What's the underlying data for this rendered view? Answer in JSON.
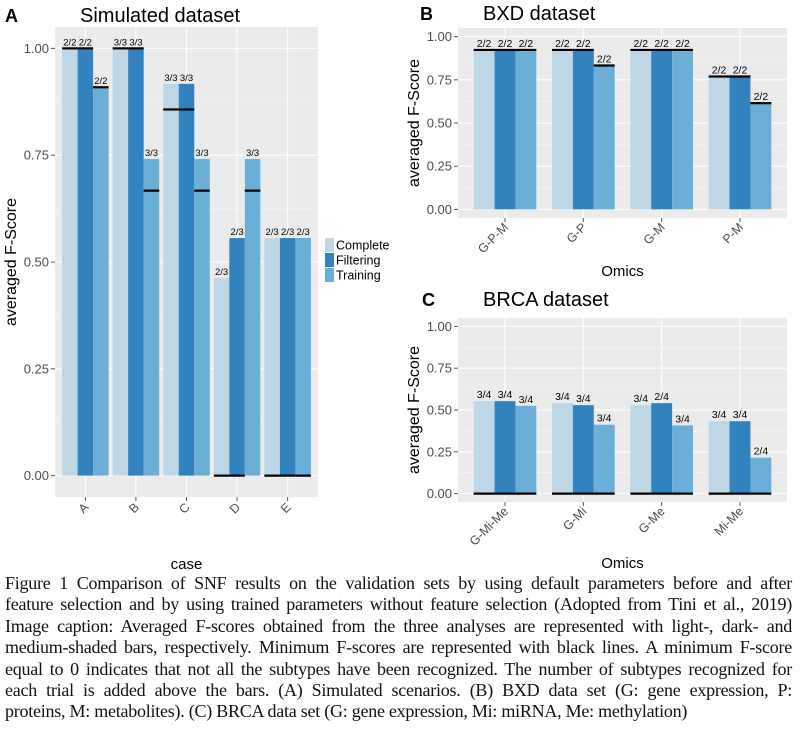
{
  "colors": {
    "Complete": "#bdd7e7",
    "Filtering": "#3182bd",
    "Training": "#6baed6",
    "min_line": "#000000",
    "panel_bg": "#ebebeb",
    "grid": "#ffffff"
  },
  "legend": [
    "Complete",
    "Filtering",
    "Training"
  ],
  "chart_data": [
    {
      "panel": "A",
      "type": "bar",
      "title": "Simulated dataset",
      "xlabel": "case",
      "ylabel": "averaged F-Score",
      "ylim": [
        -0.05,
        1.05
      ],
      "yticks": [
        "0.00",
        "0.25",
        "0.50",
        "0.75",
        "1.00"
      ],
      "grid": true,
      "legend": "right",
      "categories": [
        "A",
        "B",
        "C",
        "D",
        "E"
      ],
      "series": [
        {
          "name": "Complete",
          "values": [
            1.0,
            1.0,
            0.917,
            0.463,
            0.556
          ],
          "minimum": [
            1.0,
            1.0,
            0.857,
            0.0,
            0.0
          ],
          "labels": [
            "2/2",
            "3/3",
            "3/3",
            "2/3",
            "2/3"
          ]
        },
        {
          "name": "Filtering",
          "values": [
            1.0,
            1.0,
            0.917,
            0.556,
            0.556
          ],
          "minimum": [
            1.0,
            1.0,
            0.857,
            0.0,
            0.0
          ],
          "labels": [
            "2/2",
            "3/3",
            "3/3",
            "2/3",
            "2/3"
          ]
        },
        {
          "name": "Training",
          "values": [
            0.909,
            0.741,
            0.741,
            0.741,
            0.556
          ],
          "minimum": [
            0.909,
            0.667,
            0.667,
            0.667,
            0.0
          ],
          "labels": [
            "2/2",
            "3/3",
            "3/3",
            "3/3",
            "2/3"
          ]
        }
      ]
    },
    {
      "panel": "B",
      "type": "bar",
      "title": "BXD dataset",
      "xlabel": "Omics",
      "ylabel": "averaged F-Score",
      "ylim": [
        -0.05,
        1.05
      ],
      "yticks": [
        "0.00",
        "0.25",
        "0.50",
        "0.75",
        "1.00"
      ],
      "grid": true,
      "categories": [
        "G-P-M",
        "G-P",
        "G-M",
        "P-M"
      ],
      "series": [
        {
          "name": "Complete",
          "values": [
            0.923,
            0.923,
            0.923,
            0.769
          ],
          "minimum": [
            0.923,
            0.923,
            0.923,
            0.769
          ],
          "labels": [
            "2/2",
            "2/2",
            "2/2",
            "2/2"
          ]
        },
        {
          "name": "Filtering",
          "values": [
            0.923,
            0.923,
            0.923,
            0.769
          ],
          "minimum": [
            0.923,
            0.923,
            0.923,
            0.769
          ],
          "labels": [
            "2/2",
            "2/2",
            "2/2",
            "2/2"
          ]
        },
        {
          "name": "Training",
          "values": [
            0.923,
            0.833,
            0.923,
            0.615
          ],
          "minimum": [
            0.923,
            0.833,
            0.923,
            0.615
          ],
          "labels": [
            "2/2",
            "2/2",
            "2/2",
            "2/2"
          ]
        }
      ]
    },
    {
      "panel": "C",
      "type": "bar",
      "title": "BRCA dataset",
      "xlabel": "Omics",
      "ylabel": "averaged F-Score",
      "ylim": [
        -0.05,
        1.05
      ],
      "yticks": [
        "0.00",
        "0.25",
        "0.50",
        "0.75",
        "1.00"
      ],
      "grid": true,
      "categories": [
        "G-Mi-Me",
        "G-Mi",
        "G-Me",
        "Mi-Me"
      ],
      "series": [
        {
          "name": "Complete",
          "values": [
            0.553,
            0.541,
            0.529,
            0.433
          ],
          "minimum": [
            0,
            0,
            0,
            0
          ],
          "labels": [
            "3/4",
            "3/4",
            "3/4",
            "3/4"
          ]
        },
        {
          "name": "Filtering",
          "values": [
            0.553,
            0.529,
            0.541,
            0.433
          ],
          "minimum": [
            0,
            0,
            0,
            0
          ],
          "labels": [
            "3/4",
            "3/4",
            "2/4",
            "3/4"
          ]
        },
        {
          "name": "Training",
          "values": [
            0.525,
            0.412,
            0.408,
            0.215
          ],
          "minimum": [
            0,
            0,
            0,
            0
          ],
          "labels": [
            "3/4",
            "3/4",
            "3/4",
            "2/4"
          ]
        }
      ]
    }
  ],
  "caption": [
    "Figure 1 Comparison of SNF results on the validation sets by using default parameters before and after",
    "feature selection and by using trained parameters without feature selection (Adopted from Tini et al., 2019)",
    "Image caption: Averaged F-scores obtained from the three analyses are represented with light-, dark- and",
    "medium-shaded bars, respectively. Minimum F-scores are represented with black lines. A minimum F-score",
    "equal to 0 indicates that not all the subtypes have been recognized. The number of subtypes recognized for",
    "each trial is added above the bars. (A) Simulated scenarios. (B) BXD data set (G: gene expression, P:",
    "proteins, M: metabolites). (C) BRCA data set (G: gene expression, Mi: miRNA, Me: methylation)"
  ]
}
